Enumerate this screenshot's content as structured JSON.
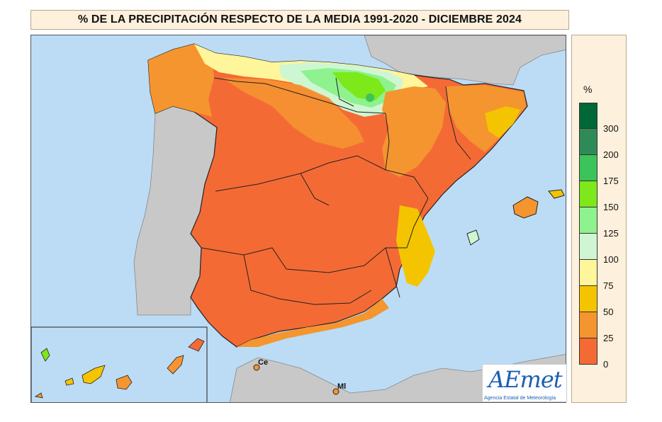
{
  "title": "% DE LA PRECIPITACIÓN RESPECTO DE LA MEDIA 1991-2020 - DICIEMBRE 2024",
  "legend": {
    "unit": "%",
    "classes": [
      {
        "label": "300",
        "color": "#006837"
      },
      {
        "label": "200",
        "color": "#2e8b57"
      },
      {
        "label": "175",
        "color": "#3cc35a"
      },
      {
        "label": "150",
        "color": "#7de81a"
      },
      {
        "label": "125",
        "color": "#8ef28e"
      },
      {
        "label": "100",
        "color": "#cff6d2"
      },
      {
        "label": "75",
        "color": "#fff59a"
      },
      {
        "label": "50",
        "color": "#f5c400"
      },
      {
        "label": "25",
        "color": "#f49530"
      },
      {
        "label": "0",
        "color": "#f46a35"
      }
    ]
  },
  "map": {
    "sea_color": "#bcdcf6",
    "land_other_color": "#c8c8c8",
    "places": [
      {
        "label": "Ce"
      },
      {
        "label": "Ml"
      }
    ]
  },
  "logo": {
    "text": "AEmet",
    "subtitle": "Agencia Estatal de Meteorología"
  }
}
